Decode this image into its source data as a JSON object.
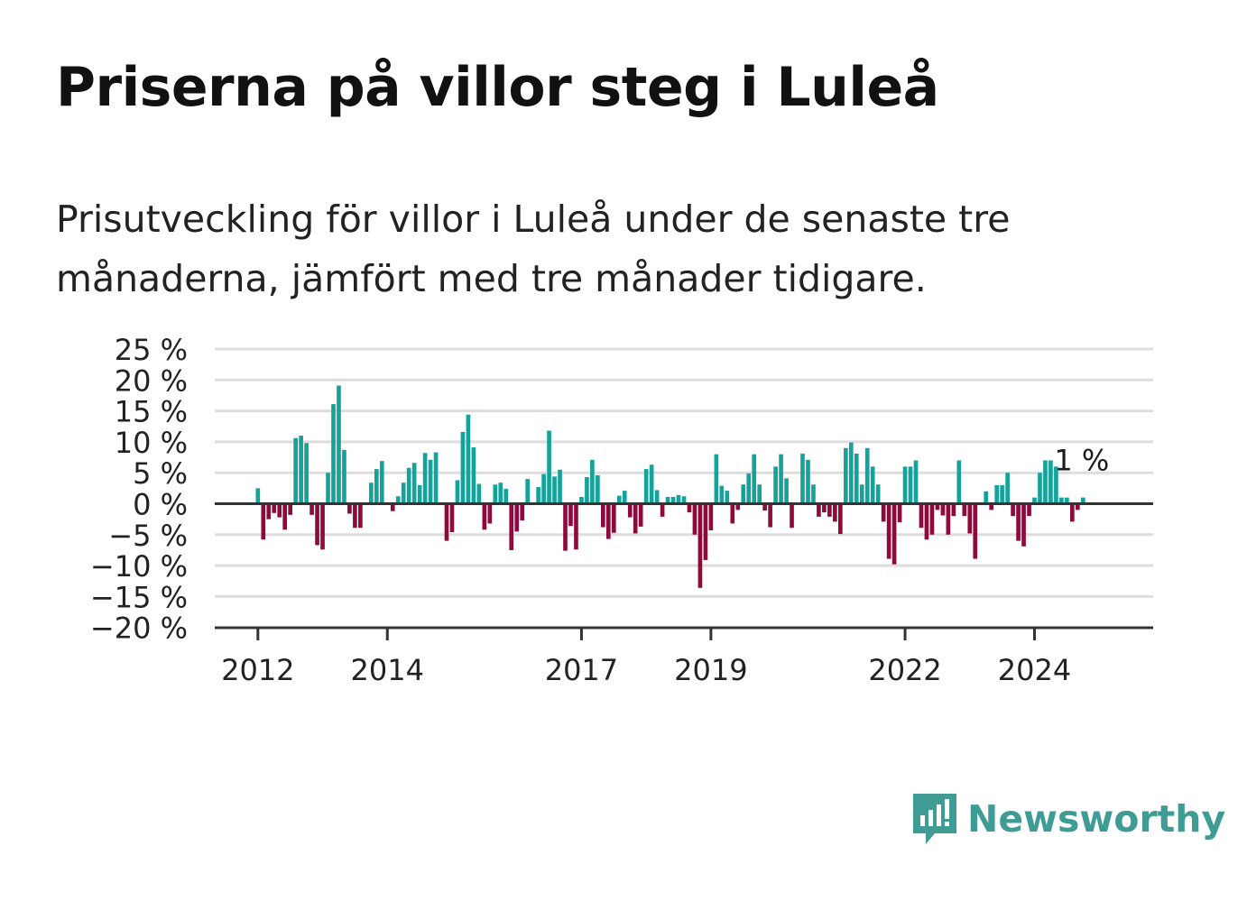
{
  "title": "Priserna på villor steg i Luleå",
  "subtitle": "Prisutveckling för villor i Luleå under de senaste tre månaderna, jämfört med tre månader tidigare.",
  "brand": {
    "name": "Newsworthy",
    "icon": "newsworthy-logo-icon",
    "color": "#3f9c95"
  },
  "colors": {
    "positive": "#14a39a",
    "negative": "#8f0a3c",
    "grid": "#dddddd",
    "axis": "#333333"
  },
  "chart_data": {
    "type": "bar",
    "title": "",
    "xlabel": "",
    "ylabel": "",
    "ylim": [
      -20,
      25
    ],
    "y_ticks": [
      25,
      20,
      15,
      10,
      5,
      0,
      -5,
      -10,
      -15,
      -20
    ],
    "y_tick_labels": [
      "25 %",
      "20 %",
      "15 %",
      "10 %",
      "5 %",
      "0 %",
      "−5 %",
      "−10 %",
      "−15 %",
      "−20 %"
    ],
    "x_ticks": [
      "2012",
      "2014",
      "2017",
      "2019",
      "2022",
      "2024"
    ],
    "x_start": "2011-05",
    "x_end": "2025-11",
    "first_month": "2012-01",
    "grid": true,
    "legend": "none",
    "series": [
      {
        "values": [
          2.5,
          -5.8,
          -2.5,
          -1.5,
          -2.2,
          -4.2,
          -1.8,
          10.6,
          11.0,
          9.8,
          -1.8,
          -6.7,
          -7.4,
          5.0,
          16.1,
          19.1,
          8.7,
          -1.6,
          -3.9,
          -3.9,
          0,
          3.4,
          5.6,
          6.9,
          0,
          -1.2,
          1.2,
          3.4,
          5.8,
          6.6,
          3.0,
          8.2,
          7.1,
          8.3,
          0,
          -6.0,
          -4.6,
          3.8,
          11.6,
          14.4,
          9.1,
          3.2,
          -4.2,
          -3.2,
          3.1,
          3.4,
          2.4,
          -7.5,
          -4.5,
          -2.7,
          4.0,
          0,
          2.7,
          4.8,
          11.8,
          4.4,
          5.5,
          -7.6,
          -3.6,
          -7.4,
          1.1,
          4.3,
          7.1,
          4.6,
          -3.8,
          -5.7,
          -4.7,
          1.3,
          2.1,
          -2.2,
          -4.8,
          -3.7,
          5.6,
          6.3,
          2.2,
          -2.1,
          1.1,
          1.1,
          1.4,
          1.2,
          -1.4,
          -5.0,
          -13.6,
          -9.1,
          -4.3,
          8.0,
          2.9,
          2.1,
          -3.2,
          -1.0,
          3.1,
          4.9,
          8.0,
          3.1,
          -1.1,
          -3.8,
          6.0,
          8.0,
          4.1,
          -3.9,
          0,
          8.1,
          7.1,
          3.1,
          -2.1,
          -1.4,
          -2.1,
          -2.9,
          -4.9,
          9.0,
          9.9,
          8.1,
          3.1,
          9.0,
          6.0,
          3.1,
          -2.9,
          -8.9,
          -9.8,
          -3.0,
          6.0,
          6.0,
          7.0,
          -3.9,
          -5.8,
          -5.0,
          -1.0,
          -1.9,
          -5.0,
          -2.0,
          7.0,
          -2.0,
          -4.8,
          -8.9,
          0,
          2.0,
          -1.0,
          3.0,
          3.0,
          5.0,
          -2.0,
          -6.0,
          -6.9,
          -2.0,
          1.0,
          5.0,
          7.0,
          7.0,
          6.0,
          1.0,
          1.0,
          -2.9,
          -1.0,
          1.0
        ],
        "last_value_label": "1 %"
      }
    ]
  }
}
